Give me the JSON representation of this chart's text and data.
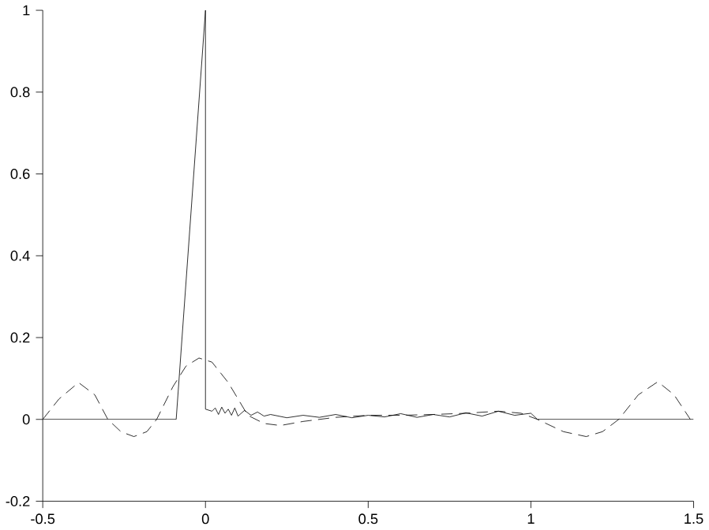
{
  "chart_data": {
    "type": "line",
    "xlim": [
      -0.5,
      1.5
    ],
    "ylim": [
      -0.2,
      1
    ],
    "xticks": [
      -0.5,
      0,
      0.5,
      1,
      1.5
    ],
    "yticks": [
      -0.2,
      0,
      0.2,
      0.4,
      0.6,
      0.8,
      1
    ],
    "series": [
      {
        "color": "#000000",
        "line_style": "solid",
        "x": [
          -0.5,
          -0.09,
          0,
          0,
          0.02,
          0.03,
          0.04,
          0.05,
          0.06,
          0.07,
          0.08,
          0.09,
          0.1,
          0.12,
          0.14,
          0.16,
          0.18,
          0.2,
          0.25,
          0.3,
          0.35,
          0.4,
          0.45,
          0.5,
          0.55,
          0.6,
          0.65,
          0.7,
          0.75,
          0.8,
          0.85,
          0.9,
          0.95,
          1.0,
          1.02,
          1.5
        ],
        "values": [
          0,
          0,
          1,
          0.025,
          0.02,
          0.028,
          0.012,
          0.03,
          0.015,
          0.025,
          0.01,
          0.028,
          0.008,
          0.022,
          0.01,
          0.018,
          0.008,
          0.012,
          0.004,
          0.01,
          0.005,
          0.012,
          0.004,
          0.01,
          0.006,
          0.014,
          0.005,
          0.012,
          0.006,
          0.016,
          0.008,
          0.02,
          0.01,
          0.015,
          0,
          0
        ]
      },
      {
        "color": "#000000",
        "line_style": "dashed",
        "x": [
          -0.5,
          -0.45,
          -0.39,
          -0.34,
          -0.3,
          -0.26,
          -0.22,
          -0.18,
          -0.15,
          -0.1,
          -0.06,
          -0.02,
          0.02,
          0.07,
          0.13,
          0.18,
          0.23,
          0.3,
          0.4,
          0.5,
          0.6,
          0.7,
          0.8,
          0.9,
          0.97,
          1.02,
          1.1,
          1.17,
          1.22,
          1.27,
          1.33,
          1.39,
          1.44,
          1.49
        ],
        "values": [
          0,
          0.05,
          0.09,
          0.06,
          0,
          -0.03,
          -0.042,
          -0.03,
          0,
          0.08,
          0.13,
          0.15,
          0.14,
          0.09,
          0.01,
          -0.01,
          -0.015,
          -0.005,
          0.005,
          0.01,
          0.01,
          0.012,
          0.015,
          0.02,
          0.015,
          0,
          -0.03,
          -0.042,
          -0.03,
          0,
          0.06,
          0.092,
          0.06,
          0
        ]
      }
    ]
  }
}
